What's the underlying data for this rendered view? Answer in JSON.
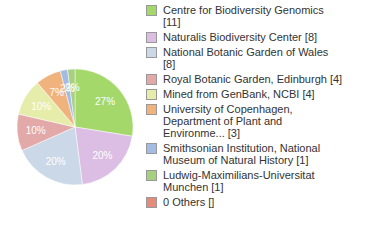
{
  "chart_data": {
    "type": "pie",
    "categories": [
      "Centre for Biodiversity Genomics [11]",
      "Naturalis Biodiversity Center [8]",
      "National Botanic Garden of Wales [8]",
      "Royal Botanic Garden, Edinburgh [4]",
      "Mined from GenBank, NCBI [4]",
      "University of Copenhagen, Department of Plant and Environme... [3]",
      "Smithsonian Institution, National Museum of Natural History [1]",
      "Ludwig-Maximilians-Universitat Munchen [1]",
      "0 Others []"
    ],
    "values": [
      27,
      20,
      20,
      10,
      10,
      7,
      2,
      2,
      0
    ],
    "value_labels": [
      "27%",
      "20%",
      "20%",
      "10%",
      "10%",
      "7%",
      "2%",
      "2%",
      null
    ],
    "colors": [
      "#a5d86b",
      "#dcbde3",
      "#cbd8e8",
      "#e3a8a8",
      "#e6ecaa",
      "#f1b37e",
      "#a4bce4",
      "#a6cf80",
      "#e58b7c"
    ],
    "data_labels": true,
    "legend": "right"
  }
}
